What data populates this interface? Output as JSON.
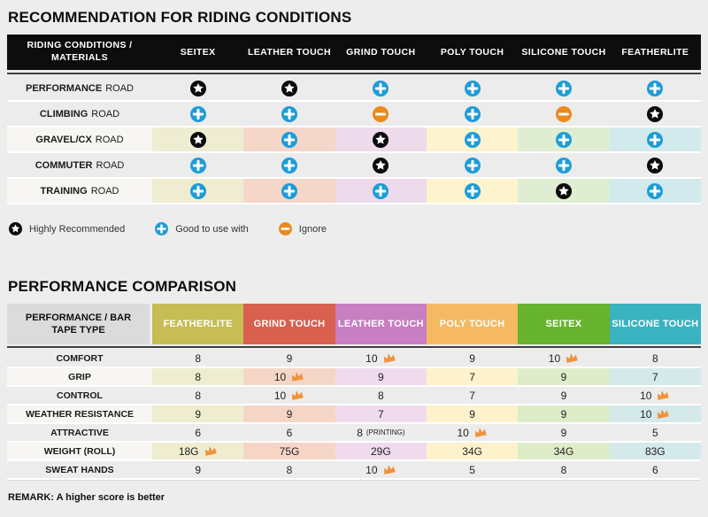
{
  "chart_data": [
    {
      "type": "table",
      "title": "RECOMMENDATION FOR RIDING CONDITIONS",
      "corner_header": "RIDING CONDITIONS / MATERIALS",
      "columns": [
        "SEITEX",
        "LEATHER TOUCH",
        "GRIND TOUCH",
        "POLY TOUCH",
        "SILICONE TOUCH",
        "FEATHERLITE"
      ],
      "tints": [
        "#eeedd2",
        "#f5d7c9",
        "#eddaeb",
        "#fdf3cf",
        "#dfedd3",
        "#d3eaec"
      ],
      "rows": [
        {
          "label_strong": "PERFORMANCE",
          "label_rest": "ROAD",
          "tinted": false,
          "cells": [
            "star",
            "star",
            "plus",
            "plus",
            "plus",
            "plus"
          ]
        },
        {
          "label_strong": "CLIMBING",
          "label_rest": "ROAD",
          "tinted": false,
          "cells": [
            "plus",
            "plus",
            "minus",
            "plus",
            "minus",
            "star"
          ]
        },
        {
          "label_strong": "GRAVEL/CX",
          "label_rest": "ROAD",
          "tinted": true,
          "cells": [
            "star",
            "plus",
            "star",
            "plus",
            "plus",
            "plus"
          ]
        },
        {
          "label_strong": "COMMUTER",
          "label_rest": "ROAD",
          "tinted": false,
          "cells": [
            "plus",
            "plus",
            "star",
            "plus",
            "plus",
            "star"
          ]
        },
        {
          "label_strong": "TRAINING",
          "label_rest": "ROAD",
          "tinted": true,
          "cells": [
            "plus",
            "plus",
            "plus",
            "plus",
            "star",
            "plus"
          ]
        }
      ],
      "legend": [
        {
          "icon": "star",
          "label": "Highly Recommended"
        },
        {
          "icon": "plus",
          "label": "Good to use with"
        },
        {
          "icon": "minus",
          "label": "Ignore"
        }
      ]
    },
    {
      "type": "table",
      "title": "PERFORMANCE COMPARISON",
      "corner_header": "PERFORMANCE / BAR TAPE TYPE",
      "columns": [
        {
          "label": "FEATHERLITE",
          "color": "#c6bd55",
          "tint": "#eeedcf"
        },
        {
          "label": "GRIND TOUCH",
          "color": "#d9604e",
          "tint": "#f5d6c6"
        },
        {
          "label": "LEATHER TOUCH",
          "color": "#c77fc1",
          "tint": "#f0dbee"
        },
        {
          "label": "POLY TOUCH",
          "color": "#f5b963",
          "tint": "#fdf2cc"
        },
        {
          "label": "SEITEX",
          "color": "#67b32e",
          "tint": "#dfecca"
        },
        {
          "label": "SILICONE TOUCH",
          "color": "#39b3bf",
          "tint": "#d3e9ea"
        }
      ],
      "rows": [
        {
          "label": "COMFORT",
          "tinted": false,
          "cells": [
            {
              "v": "8"
            },
            {
              "v": "9"
            },
            {
              "v": "10",
              "crown": true
            },
            {
              "v": "9"
            },
            {
              "v": "10",
              "crown": true
            },
            {
              "v": "8"
            }
          ]
        },
        {
          "label": "GRIP",
          "tinted": true,
          "cells": [
            {
              "v": "8"
            },
            {
              "v": "10",
              "crown": true
            },
            {
              "v": "9"
            },
            {
              "v": "7"
            },
            {
              "v": "9"
            },
            {
              "v": "7"
            }
          ]
        },
        {
          "label": "CONTROL",
          "tinted": false,
          "cells": [
            {
              "v": "8"
            },
            {
              "v": "10",
              "crown": true
            },
            {
              "v": "8"
            },
            {
              "v": "7"
            },
            {
              "v": "9"
            },
            {
              "v": "10",
              "crown": true
            }
          ]
        },
        {
          "label": "WEATHER RESISTANCE",
          "tinted": true,
          "cells": [
            {
              "v": "9"
            },
            {
              "v": "9"
            },
            {
              "v": "7"
            },
            {
              "v": "9"
            },
            {
              "v": "9"
            },
            {
              "v": "10",
              "crown": true
            }
          ]
        },
        {
          "label": "ATTRACTIVE",
          "tinted": false,
          "cells": [
            {
              "v": "6"
            },
            {
              "v": "6"
            },
            {
              "v": "8",
              "suffix": "(PRINTING)"
            },
            {
              "v": "10",
              "crown": true
            },
            {
              "v": "9"
            },
            {
              "v": "5"
            }
          ]
        },
        {
          "label": "WEIGHT (ROLL)",
          "tinted": true,
          "cells": [
            {
              "v": "18G",
              "crown": true
            },
            {
              "v": "75G"
            },
            {
              "v": "29G"
            },
            {
              "v": "34G"
            },
            {
              "v": "34G"
            },
            {
              "v": "83G"
            }
          ]
        },
        {
          "label": "SWEAT HANDS",
          "tinted": false,
          "cells": [
            {
              "v": "9"
            },
            {
              "v": "8"
            },
            {
              "v": "10",
              "crown": true
            },
            {
              "v": "5"
            },
            {
              "v": "8"
            },
            {
              "v": "6"
            }
          ]
        }
      ],
      "remark": "REMARK: A higher score is better"
    }
  ],
  "colors": {
    "page_bg": "#ededed",
    "header_bg": "#0d0d0d",
    "row_gray": "#ececec",
    "row_label_light": "#f7f6f3",
    "corner2_bg": "#dbdbdb",
    "dark_line": "#3f3f3f",
    "icon_star": "#0b0b0b",
    "icon_plus": "#1e9cd7",
    "icon_minus": "#ea8a1d",
    "crown": "#f0923c"
  }
}
